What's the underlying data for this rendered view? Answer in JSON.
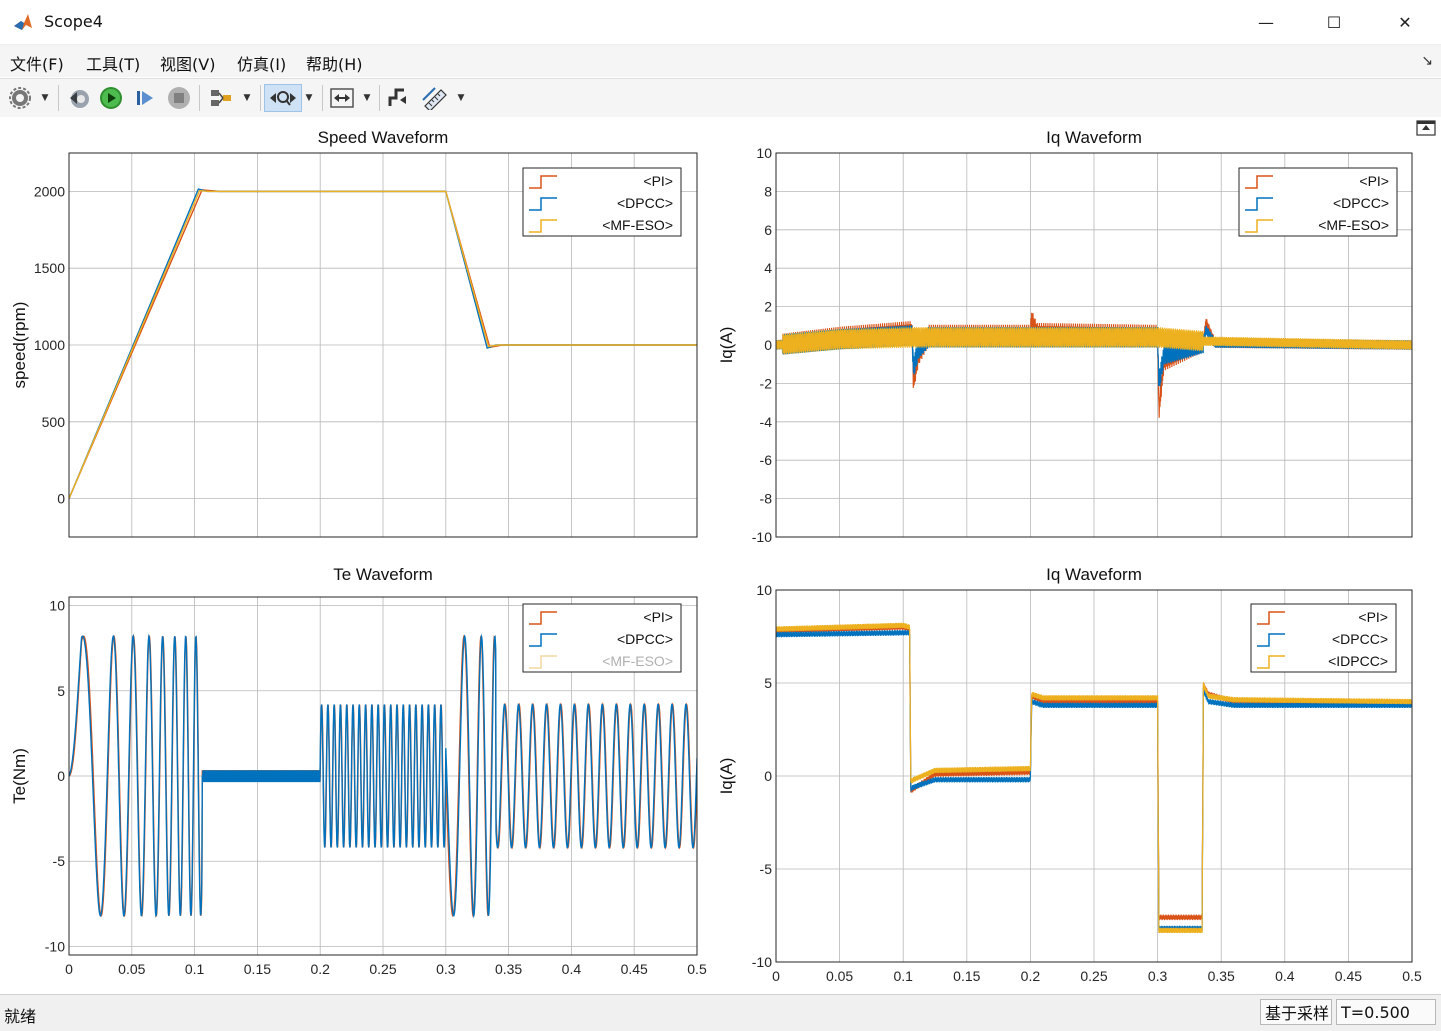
{
  "window": {
    "title": "Scope4",
    "minimize": "—",
    "maximize": "☐",
    "close": "✕"
  },
  "menu": {
    "items": [
      "文件(F)",
      "工具(T)",
      "视图(V)",
      "仿真(I)",
      "帮助(H)"
    ]
  },
  "toolbar": {
    "icons": [
      "gear-icon",
      "dropdown-icon",
      "step-back-icon",
      "run-icon",
      "step-forward-icon",
      "stop-icon",
      "highlight-block-icon",
      "dropdown-icon",
      "zoom-icon",
      "dropdown-icon",
      "fit-view-icon",
      "dropdown-icon",
      "trigger-icon",
      "measure-icon",
      "dropdown-icon"
    ]
  },
  "status": {
    "left": "就绪",
    "mode": "基于采样",
    "time": "T=0.500"
  },
  "colors": {
    "pi": "#D95319",
    "dpcc": "#0072BD",
    "mfeso": "#EDB120",
    "grid": "#b8b8b8",
    "axis": "#262626"
  },
  "chart_data": [
    {
      "type": "line",
      "title": "Speed Waveform",
      "xlabel": "",
      "ylabel": "speed(rpm)",
      "xlim": [
        0,
        0.5
      ],
      "ylim": [
        -250,
        2250
      ],
      "xticks": [
        0,
        0.05,
        0.1,
        0.15,
        0.2,
        0.25,
        0.3,
        0.35,
        0.4,
        0.45,
        0.5
      ],
      "yticks": [
        0,
        500,
        1000,
        1500,
        2000
      ],
      "show_xticklabels": false,
      "grid": true,
      "legend_position": "top-right",
      "series": [
        {
          "name": "<PI>",
          "x": [
            0,
            0.106,
            0.12,
            0.2,
            0.3,
            0.335,
            0.345,
            0.5
          ],
          "y": [
            0,
            2010,
            2000,
            2000,
            2000,
            985,
            1000,
            1000
          ]
        },
        {
          "name": "<DPCC>",
          "x": [
            0,
            0.103,
            0.11,
            0.2,
            0.3,
            0.333,
            0.34,
            0.5
          ],
          "y": [
            0,
            2015,
            2000,
            2000,
            2000,
            980,
            1000,
            1000
          ]
        },
        {
          "name": "<MF-ESO>",
          "x": [
            0,
            0.104,
            0.112,
            0.2,
            0.3,
            0.334,
            0.342,
            0.5
          ],
          "y": [
            0,
            2005,
            2000,
            2000,
            2000,
            990,
            1000,
            1000
          ]
        }
      ]
    },
    {
      "type": "line",
      "title": "Iq Waveform",
      "xlabel": "",
      "ylabel": "Iq(A)",
      "xlim": [
        0,
        0.5
      ],
      "ylim": [
        -10,
        10
      ],
      "xticks": [
        0,
        0.05,
        0.1,
        0.15,
        0.2,
        0.25,
        0.3,
        0.35,
        0.4,
        0.45,
        0.5
      ],
      "yticks": [
        -10,
        -8,
        -6,
        -4,
        -2,
        0,
        2,
        4,
        6,
        8,
        10
      ],
      "show_xticklabels": false,
      "grid": true,
      "legend_position": "top-right",
      "series": [
        {
          "name": "<PI>",
          "x": [
            0,
            0.05,
            0.107,
            0.108,
            0.112,
            0.12,
            0.2,
            0.201,
            0.205,
            0.3,
            0.301,
            0.305,
            0.336,
            0.338,
            0.345,
            0.5
          ],
          "y": [
            0,
            0.4,
            0.7,
            -1.9,
            -0.5,
            0.5,
            0.5,
            1.3,
            0.6,
            0.5,
            -3.4,
            -0.8,
            0.2,
            1.2,
            0.1,
            0
          ]
        },
        {
          "name": "<DPCC>",
          "x": [
            0,
            0.05,
            0.107,
            0.108,
            0.112,
            0.12,
            0.2,
            0.3,
            0.301,
            0.305,
            0.336,
            0.338,
            0.345,
            0.5
          ],
          "y": [
            0,
            0.3,
            0.5,
            -1.2,
            -0.2,
            0.4,
            0.4,
            0.4,
            -2.0,
            -0.5,
            0.1,
            0.8,
            0.1,
            0
          ]
        },
        {
          "name": "<MF-ESO>",
          "x": [
            0,
            0.05,
            0.107,
            0.2,
            0.3,
            0.336,
            0.5
          ],
          "y": [
            0,
            0.3,
            0.4,
            0.4,
            0.4,
            0.2,
            0
          ]
        }
      ]
    },
    {
      "type": "line",
      "title": "Te Waveform",
      "xlabel": "",
      "ylabel": "Te(Nm)",
      "xlim": [
        0,
        0.5
      ],
      "ylim": [
        -10.5,
        10.5
      ],
      "xticks": [
        0,
        0.05,
        0.1,
        0.15,
        0.2,
        0.25,
        0.3,
        0.35,
        0.4,
        0.45,
        0.5
      ],
      "xticklabels": [
        "0",
        "0.05",
        "0.1",
        "0.15",
        "0.2",
        "0.25",
        "0.3",
        "0.35",
        "0.4",
        "0.45",
        "0.5"
      ],
      "yticks": [
        -10,
        -5,
        0,
        5,
        10
      ],
      "show_xticklabels": true,
      "grid": true,
      "legend_position": "top-right",
      "series": [
        {
          "name": "<PI>",
          "x": [
            0,
            0.02,
            0.034,
            0.045,
            0.06,
            0.075,
            0.09,
            0.104,
            0.107,
            0.108,
            0.2,
            0.201,
            0.25,
            0.3,
            0.33,
            0.35,
            0.4,
            0.45,
            0.5
          ],
          "y": [
            0,
            -8.2,
            8.2,
            -8.2,
            8.2,
            -8.2,
            8.2,
            -8.2,
            2,
            0,
            0,
            4.2,
            -4.2,
            4.2,
            8.2,
            -4.2,
            4.2,
            -4.2,
            2.5
          ]
        },
        {
          "name": "<DPCC>",
          "x": [
            0,
            0.02,
            0.034,
            0.045,
            0.06,
            0.075,
            0.09,
            0.103,
            0.106,
            0.2,
            0.201,
            0.25,
            0.3,
            0.33,
            0.35,
            0.4,
            0.45,
            0.5
          ],
          "y": [
            0,
            -8.2,
            8.2,
            -8.2,
            8.2,
            -8.2,
            8.2,
            -8.2,
            0,
            0,
            4.2,
            -4.2,
            4.2,
            8.2,
            -4.2,
            4.2,
            -4.2,
            2.5
          ]
        },
        {
          "name": "<MF-ESO>",
          "x": [],
          "y": []
        }
      ]
    },
    {
      "type": "line",
      "title": "Iq Waveform",
      "xlabel": "",
      "ylabel": "Iq(A)",
      "xlim": [
        0,
        0.5
      ],
      "ylim": [
        -10,
        10
      ],
      "xticks": [
        0,
        0.05,
        0.1,
        0.15,
        0.2,
        0.25,
        0.3,
        0.35,
        0.4,
        0.45,
        0.5
      ],
      "xticklabels": [
        "0",
        "0.05",
        "0.1",
        "0.15",
        "0.2",
        "0.25",
        "0.3",
        "0.35",
        "0.4",
        "0.45",
        "0.5"
      ],
      "yticks": [
        -10,
        -5,
        0,
        5,
        10
      ],
      "show_xticklabels": true,
      "grid": true,
      "legend_position": "top-right",
      "series": [
        {
          "name": "<PI>",
          "x": [
            0,
            0.1,
            0.105,
            0.106,
            0.108,
            0.125,
            0.2,
            0.201,
            0.21,
            0.3,
            0.301,
            0.335,
            0.336,
            0.34,
            0.36,
            0.5
          ],
          "y": [
            7.8,
            8.0,
            7.9,
            -0.8,
            -0.7,
            0.1,
            0.2,
            4.3,
            4.0,
            4.0,
            -7.6,
            -7.6,
            4.9,
            4.4,
            4.0,
            3.9
          ]
        },
        {
          "name": "<DPCC>",
          "x": [
            0,
            0.1,
            0.105,
            0.106,
            0.108,
            0.125,
            0.2,
            0.201,
            0.21,
            0.3,
            0.301,
            0.335,
            0.336,
            0.34,
            0.36,
            0.5
          ],
          "y": [
            7.6,
            7.7,
            7.7,
            -0.7,
            -0.6,
            -0.2,
            -0.2,
            4.0,
            3.8,
            3.8,
            -8.2,
            -8.2,
            4.6,
            4.0,
            3.8,
            3.8
          ]
        },
        {
          "name": "<IDPCC>",
          "x": [
            0,
            0.1,
            0.105,
            0.106,
            0.108,
            0.125,
            0.2,
            0.201,
            0.21,
            0.3,
            0.301,
            0.335,
            0.336,
            0.34,
            0.36,
            0.5
          ],
          "y": [
            7.9,
            8.1,
            8.0,
            -0.3,
            -0.2,
            0.3,
            0.4,
            4.4,
            4.2,
            4.2,
            -8.3,
            -8.3,
            4.9,
            4.3,
            4.1,
            4.0
          ]
        }
      ]
    }
  ]
}
